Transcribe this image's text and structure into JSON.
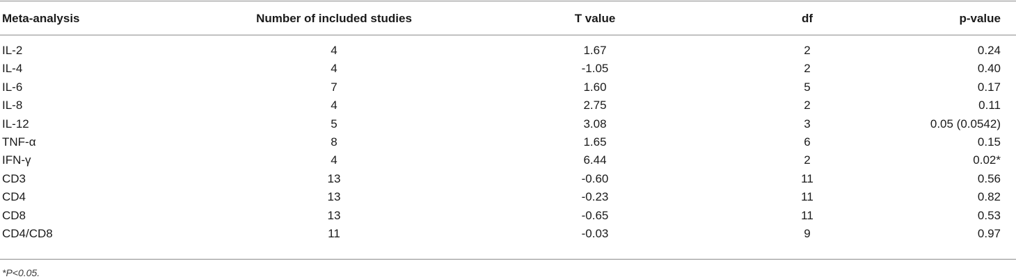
{
  "table": {
    "headers": [
      "Meta-analysis",
      "Number of included studies",
      "T value",
      "df",
      "p-value"
    ],
    "rows": [
      [
        "IL-2",
        "4",
        "1.67",
        "2",
        "0.24"
      ],
      [
        "IL-4",
        "4",
        "-1.05",
        "2",
        "0.40"
      ],
      [
        "IL-6",
        "7",
        "1.60",
        "5",
        "0.17"
      ],
      [
        "IL-8",
        "4",
        "2.75",
        "2",
        "0.11"
      ],
      [
        "IL-12",
        "5",
        "3.08",
        "3",
        "0.05 (0.0542)"
      ],
      [
        "TNF-α",
        "8",
        "1.65",
        "6",
        "0.15"
      ],
      [
        "IFN-γ",
        "4",
        "6.44",
        "2",
        "0.02*"
      ],
      [
        "CD3",
        "13",
        "-0.60",
        "11",
        "0.56"
      ],
      [
        "CD4",
        "13",
        "-0.23",
        "11",
        "0.82"
      ],
      [
        "CD8",
        "13",
        "-0.65",
        "11",
        "0.53"
      ],
      [
        "CD4/CD8",
        "11",
        "-0.03",
        "9",
        "0.97"
      ]
    ],
    "footnote": "*P<0.05."
  }
}
